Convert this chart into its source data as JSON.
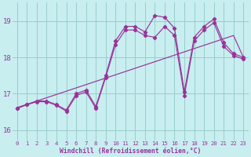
{
  "bg_color": "#c8eef0",
  "line_color": "#993399",
  "marker": "D",
  "markersize": 2.2,
  "linewidth": 0.85,
  "xlim": [
    -0.5,
    23.5
  ],
  "ylim": [
    15.72,
    19.5
  ],
  "yticks": [
    16,
    17,
    18,
    19
  ],
  "xticks": [
    0,
    1,
    2,
    3,
    4,
    5,
    6,
    7,
    8,
    9,
    10,
    11,
    12,
    13,
    14,
    15,
    16,
    17,
    18,
    19,
    20,
    21,
    22,
    23
  ],
  "grid_color": "#99cccc",
  "xlabel": "Windchill (Refroidissement éolien,°C)",
  "series_linear": [
    16.62,
    16.71,
    16.8,
    16.89,
    16.98,
    17.07,
    17.16,
    17.25,
    17.34,
    17.43,
    17.52,
    17.61,
    17.7,
    17.79,
    17.88,
    17.97,
    18.06,
    18.15,
    18.24,
    18.33,
    18.42,
    18.51,
    18.6,
    18.0
  ],
  "series_a": [
    16.6,
    16.7,
    16.8,
    16.8,
    16.7,
    16.55,
    17.0,
    17.1,
    16.65,
    17.5,
    18.45,
    18.85,
    18.85,
    18.7,
    19.15,
    19.1,
    18.8,
    17.05,
    18.55,
    18.85,
    19.05,
    18.4,
    18.1,
    18.0
  ],
  "series_b": [
    16.6,
    16.7,
    16.78,
    16.78,
    16.68,
    16.52,
    16.95,
    17.05,
    16.6,
    17.45,
    18.35,
    18.75,
    18.75,
    18.6,
    18.55,
    18.85,
    18.6,
    16.95,
    18.45,
    18.75,
    18.95,
    18.3,
    18.05,
    17.95
  ]
}
